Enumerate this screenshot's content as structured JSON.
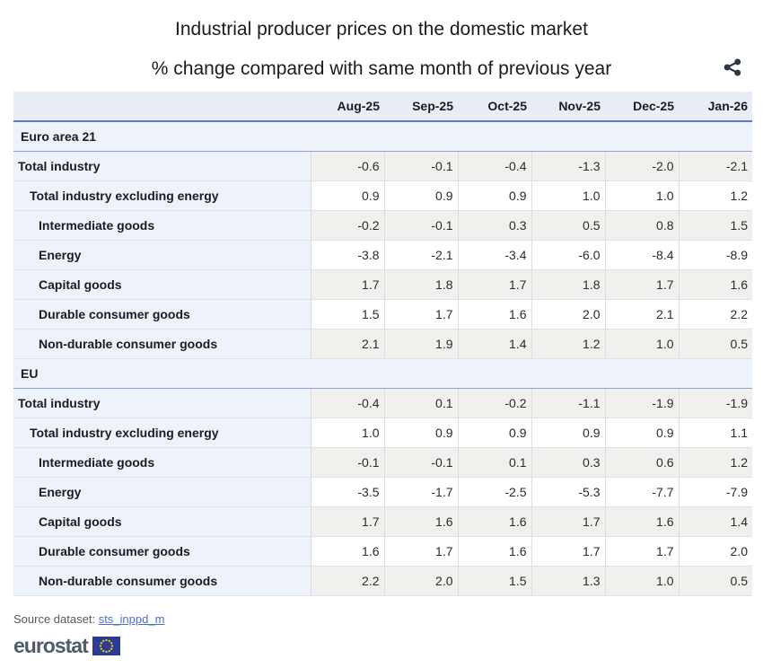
{
  "chart_data": {
    "type": "table",
    "title": "Industrial producer prices on the domestic market",
    "subtitle": "% change compared with same month of previous year",
    "columns": [
      "Aug-25",
      "Sep-25",
      "Oct-25",
      "Nov-25",
      "Dec-25",
      "Jan-26"
    ],
    "sections": [
      {
        "label": "Euro area 21",
        "rows": [
          {
            "label": "Total industry",
            "indent": 0,
            "values": [
              "-0.6",
              "-0.1",
              "-0.4",
              "-1.3",
              "-2.0",
              "-2.1"
            ]
          },
          {
            "label": "Total industry excluding energy",
            "indent": 1,
            "values": [
              "0.9",
              "0.9",
              "0.9",
              "1.0",
              "1.0",
              "1.2"
            ]
          },
          {
            "label": "Intermediate goods",
            "indent": 2,
            "values": [
              "-0.2",
              "-0.1",
              "0.3",
              "0.5",
              "0.8",
              "1.5"
            ]
          },
          {
            "label": "Energy",
            "indent": 2,
            "values": [
              "-3.8",
              "-2.1",
              "-3.4",
              "-6.0",
              "-8.4",
              "-8.9"
            ]
          },
          {
            "label": "Capital goods",
            "indent": 2,
            "values": [
              "1.7",
              "1.8",
              "1.7",
              "1.8",
              "1.7",
              "1.6"
            ]
          },
          {
            "label": "Durable consumer goods",
            "indent": 2,
            "values": [
              "1.5",
              "1.7",
              "1.6",
              "2.0",
              "2.1",
              "2.2"
            ]
          },
          {
            "label": "Non-durable consumer goods",
            "indent": 2,
            "values": [
              "2.1",
              "1.9",
              "1.4",
              "1.2",
              "1.0",
              "0.5"
            ]
          }
        ]
      },
      {
        "label": "EU",
        "rows": [
          {
            "label": "Total industry",
            "indent": 0,
            "values": [
              "-0.4",
              "0.1",
              "-0.2",
              "-1.1",
              "-1.9",
              "-1.9"
            ]
          },
          {
            "label": "Total industry excluding energy",
            "indent": 1,
            "values": [
              "1.0",
              "0.9",
              "0.9",
              "0.9",
              "0.9",
              "1.1"
            ]
          },
          {
            "label": "Intermediate goods",
            "indent": 2,
            "values": [
              "-0.1",
              "-0.1",
              "0.1",
              "0.3",
              "0.6",
              "1.2"
            ]
          },
          {
            "label": "Energy",
            "indent": 2,
            "values": [
              "-3.5",
              "-1.7",
              "-2.5",
              "-5.3",
              "-7.7",
              "-7.9"
            ]
          },
          {
            "label": "Capital goods",
            "indent": 2,
            "values": [
              "1.7",
              "1.6",
              "1.6",
              "1.7",
              "1.6",
              "1.4"
            ]
          },
          {
            "label": "Durable consumer goods",
            "indent": 2,
            "values": [
              "1.6",
              "1.7",
              "1.6",
              "1.7",
              "1.7",
              "2.0"
            ]
          },
          {
            "label": "Non-durable consumer goods",
            "indent": 2,
            "values": [
              "2.2",
              "2.0",
              "1.5",
              "1.3",
              "1.0",
              "0.5"
            ]
          }
        ]
      }
    ],
    "layout": {
      "grid": "horizontal row separators",
      "striping": "alternate gray/white value rows",
      "label_column_bg": "light blue"
    }
  },
  "header": {
    "share_icon": "share-icon"
  },
  "footer": {
    "source_label": "Source dataset:",
    "source_link": "sts_inppd_m",
    "logo_text": "eurostat",
    "logo_flag_icon": "eu-flag-icon"
  },
  "colors": {
    "accent_border": "#5d78c3",
    "group_border": "#8fa3d3",
    "row_border": "#dbe1ef",
    "panel_blue": "#eef2fb",
    "head_blue": "#e9edf6",
    "stripe_gray": "#f1f0ed",
    "link_blue": "#4a6fc8",
    "logo_gray": "#515a6b",
    "flag_blue": "#2b3b95",
    "star_yellow": "#ffcc00",
    "icon_dark": "#2e3744"
  }
}
